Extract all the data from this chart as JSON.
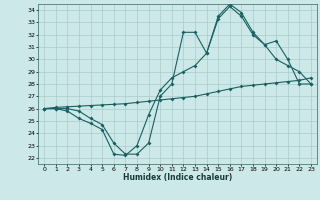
{
  "xlabel": "Humidex (Indice chaleur)",
  "ylabel": "",
  "bg_color": "#cce8e8",
  "grid_color": "#aacccc",
  "line_color": "#1a6060",
  "xlim": [
    -0.5,
    23.5
  ],
  "ylim": [
    21.5,
    34.5
  ],
  "xticks": [
    0,
    1,
    2,
    3,
    4,
    5,
    6,
    7,
    8,
    9,
    10,
    11,
    12,
    13,
    14,
    15,
    16,
    17,
    18,
    19,
    20,
    21,
    22,
    23
  ],
  "yticks": [
    22,
    23,
    24,
    25,
    26,
    27,
    28,
    29,
    30,
    31,
    32,
    33,
    34
  ],
  "line1_x": [
    0,
    1,
    2,
    3,
    4,
    5,
    6,
    7,
    8,
    9,
    10,
    11,
    12,
    13,
    14,
    15,
    16,
    17,
    18,
    19,
    20,
    21,
    22,
    23
  ],
  "line1_y": [
    26.0,
    26.0,
    25.8,
    25.2,
    24.8,
    24.3,
    22.3,
    22.2,
    23.0,
    25.5,
    27.5,
    28.5,
    29.0,
    29.5,
    30.5,
    33.3,
    34.3,
    33.5,
    32.0,
    31.2,
    30.0,
    29.5,
    29.0,
    28.0
  ],
  "line2_x": [
    0,
    1,
    2,
    3,
    4,
    5,
    6,
    7,
    8,
    9,
    10,
    11,
    12,
    13,
    14,
    15,
    16,
    17,
    18,
    19,
    20,
    21,
    22,
    23
  ],
  "line2_y": [
    26.0,
    26.1,
    26.15,
    26.2,
    26.25,
    26.3,
    26.35,
    26.4,
    26.5,
    26.6,
    26.7,
    26.8,
    26.9,
    27.0,
    27.2,
    27.4,
    27.6,
    27.8,
    27.9,
    28.0,
    28.1,
    28.2,
    28.3,
    28.5
  ],
  "line3_x": [
    0,
    1,
    2,
    3,
    4,
    5,
    6,
    7,
    8,
    9,
    10,
    11,
    12,
    13,
    14,
    15,
    16,
    17,
    18,
    19,
    20,
    21,
    22,
    23
  ],
  "line3_y": [
    26.0,
    26.0,
    26.0,
    25.8,
    25.2,
    24.7,
    23.2,
    22.3,
    22.3,
    23.2,
    27.0,
    28.0,
    32.2,
    32.2,
    30.5,
    33.5,
    34.5,
    33.8,
    32.2,
    31.2,
    31.5,
    30.0,
    28.0,
    28.0
  ]
}
